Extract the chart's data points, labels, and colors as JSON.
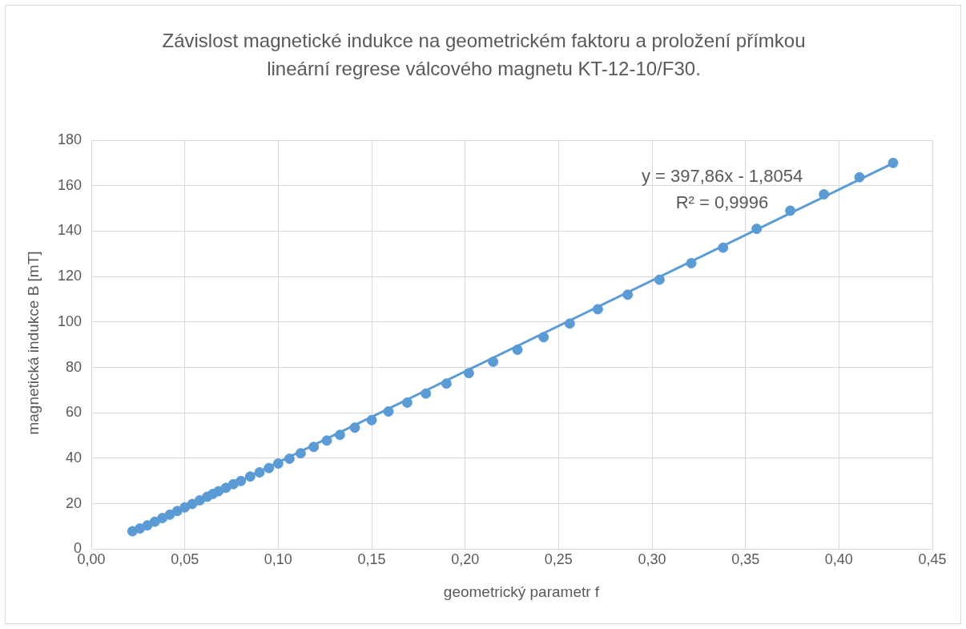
{
  "chart_data": {
    "type": "scatter",
    "title": "Závislost magnetické indukce na geometrickém faktoru a proložení přímkou lineární regrese válcového magnetu KT-12-10/F30.",
    "xlabel": "geometrický parametr f",
    "ylabel": "magnetická indukce B [mT]",
    "series": [
      {
        "color": "#5b9bd5",
        "marker": "circle",
        "x": [
          0.429,
          0.411,
          0.392,
          0.374,
          0.356,
          0.338,
          0.321,
          0.304,
          0.287,
          0.271,
          0.256,
          0.242,
          0.228,
          0.215,
          0.202,
          0.19,
          0.179,
          0.169,
          0.159,
          0.15,
          0.141,
          0.133,
          0.126,
          0.119,
          0.112,
          0.106,
          0.1,
          0.095,
          0.09,
          0.085,
          0.08,
          0.076,
          0.072,
          0.068,
          0.065,
          0.062,
          0.058,
          0.054,
          0.05,
          0.046,
          0.042,
          0.038,
          0.034,
          0.03,
          0.026,
          0.022
        ],
        "values": [
          170,
          163.7,
          156.2,
          149,
          141,
          132.7,
          125.9,
          118.6,
          112,
          105.6,
          99.3,
          93.3,
          87.8,
          82.5,
          77.5,
          72.9,
          68.5,
          64.5,
          60.6,
          56.8,
          53.5,
          50.3,
          47.8,
          45,
          42.2,
          39.8,
          37.7,
          35.7,
          33.8,
          32,
          30,
          28.6,
          27,
          25.5,
          24.3,
          23.1,
          21.5,
          19.9,
          18.4,
          16.8,
          15.2,
          13.7,
          12.1,
          10.5,
          9.1,
          7.9
        ]
      },
      {
        "type": "line",
        "color": "#5b9bd5",
        "marker": "none",
        "line_style": "solid",
        "x": [
          0.022,
          0.429
        ],
        "values": [
          7.0,
          169.9
        ]
      }
    ],
    "xlim": [
      0,
      0.45
    ],
    "xticks": [
      {
        "value": 0,
        "label": "0,00"
      },
      {
        "value": 0.05,
        "label": "0,05"
      },
      {
        "value": 0.1,
        "label": "0,10"
      },
      {
        "value": 0.15,
        "label": "0,15"
      },
      {
        "value": 0.2,
        "label": "0,20"
      },
      {
        "value": 0.25,
        "label": "0,25"
      },
      {
        "value": 0.3,
        "label": "0,30"
      },
      {
        "value": 0.35,
        "label": "0,35"
      },
      {
        "value": 0.4,
        "label": "0,40"
      },
      {
        "value": 0.45,
        "label": "0,45"
      }
    ],
    "ylim": [
      0,
      180
    ],
    "yticks": [
      0,
      20,
      40,
      60,
      80,
      100,
      120,
      140,
      160,
      180
    ],
    "annotations": [
      "y = 397,86x - 1,8054",
      "R² = 0,9996"
    ],
    "grid": true,
    "legend": false
  }
}
